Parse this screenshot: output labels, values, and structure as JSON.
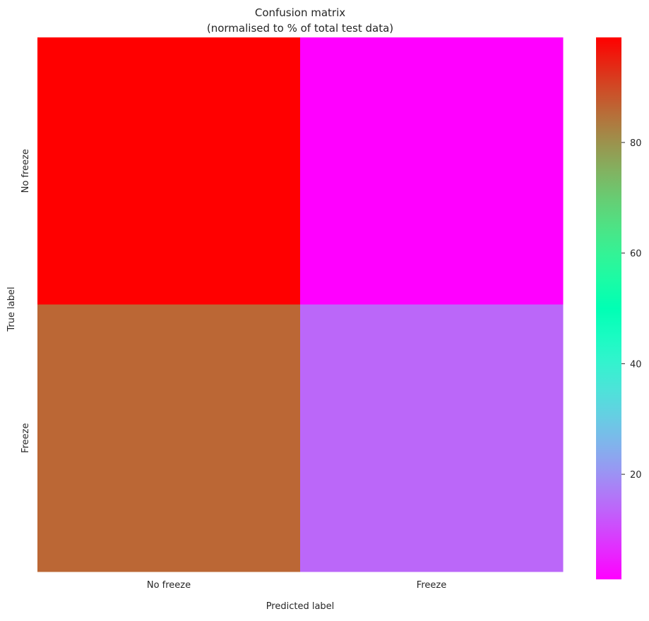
{
  "chart_data": {
    "type": "heatmap",
    "title": "Confusion matrix",
    "subtitle": "(normalised to % of total test data)",
    "xlabel": "Predicted label",
    "ylabel": "True label",
    "x_categories": [
      "No freeze",
      "Freeze"
    ],
    "y_categories": [
      "No freeze",
      "Freeze"
    ],
    "values": [
      [
        99,
        1
      ],
      [
        86,
        14
      ]
    ],
    "colormap": "rainbow",
    "colorbar_range": [
      1,
      99
    ],
    "colorbar_ticks": [
      20,
      40,
      60,
      80
    ],
    "grid": false
  }
}
